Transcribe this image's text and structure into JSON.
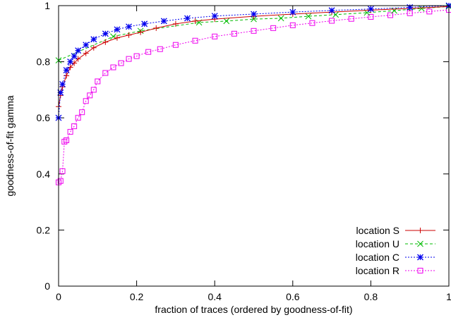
{
  "chart_data": {
    "type": "line",
    "xlabel": "fraction of traces (ordered by goodness-of-fit)",
    "ylabel": "goodness-of-fit gamma",
    "xlim": [
      0,
      1
    ],
    "ylim": [
      0,
      1
    ],
    "x_ticks": [
      0,
      0.2,
      0.4,
      0.6,
      0.8,
      1
    ],
    "x_tick_labels": [
      "0",
      "0.2",
      "0.4",
      "0.6",
      "0.8",
      "1"
    ],
    "y_ticks": [
      0,
      0.2,
      0.4,
      0.6,
      0.8,
      1
    ],
    "y_tick_labels": [
      "0",
      "0.2",
      "0.4",
      "0.6",
      "0.8",
      "1"
    ],
    "grid": false,
    "legend_position": "bottom-right",
    "series": [
      {
        "name": "location S",
        "color": "#cc0000",
        "marker": "plus",
        "dash": "solid",
        "x": [
          0,
          0.005,
          0.01,
          0.02,
          0.03,
          0.04,
          0.05,
          0.07,
          0.09,
          0.12,
          0.15,
          0.18,
          0.21,
          0.25,
          0.3,
          0.35,
          0.4,
          0.5,
          0.6,
          0.7,
          0.8,
          0.9,
          1.0
        ],
        "y": [
          0.64,
          0.68,
          0.71,
          0.75,
          0.78,
          0.795,
          0.81,
          0.83,
          0.85,
          0.87,
          0.885,
          0.895,
          0.905,
          0.92,
          0.935,
          0.945,
          0.952,
          0.962,
          0.97,
          0.977,
          0.984,
          0.99,
          0.997
        ]
      },
      {
        "name": "location U",
        "color": "#00bb00",
        "marker": "cross",
        "dash": "dashed",
        "x": [
          0,
          0.14,
          0.21,
          0.36,
          0.43,
          0.5,
          0.57,
          0.64,
          0.71,
          0.79,
          0.86,
          0.93,
          1.0
        ],
        "y": [
          0.805,
          0.89,
          0.91,
          0.94,
          0.945,
          0.952,
          0.955,
          0.962,
          0.968,
          0.975,
          0.982,
          0.99,
          0.997
        ]
      },
      {
        "name": "location C",
        "color": "#0000ee",
        "marker": "star",
        "dash": "dotted",
        "x": [
          0,
          0.005,
          0.01,
          0.02,
          0.03,
          0.04,
          0.05,
          0.07,
          0.09,
          0.12,
          0.15,
          0.18,
          0.22,
          0.27,
          0.33,
          0.4,
          0.5,
          0.6,
          0.7,
          0.8,
          0.9,
          1.0
        ],
        "y": [
          0.6,
          0.69,
          0.72,
          0.77,
          0.8,
          0.82,
          0.84,
          0.86,
          0.88,
          0.9,
          0.915,
          0.925,
          0.935,
          0.945,
          0.955,
          0.963,
          0.97,
          0.977,
          0.983,
          0.988,
          0.994,
          1.0
        ]
      },
      {
        "name": "location R",
        "color": "#ee00ee",
        "marker": "square",
        "dash": "dotted",
        "x": [
          0,
          0.005,
          0.01,
          0.015,
          0.02,
          0.03,
          0.04,
          0.05,
          0.06,
          0.07,
          0.08,
          0.09,
          0.1,
          0.12,
          0.14,
          0.16,
          0.18,
          0.2,
          0.23,
          0.26,
          0.3,
          0.35,
          0.4,
          0.45,
          0.5,
          0.55,
          0.6,
          0.65,
          0.7,
          0.75,
          0.8,
          0.85,
          0.9,
          0.95,
          1.0
        ],
        "y": [
          0.37,
          0.375,
          0.41,
          0.515,
          0.52,
          0.55,
          0.57,
          0.6,
          0.62,
          0.66,
          0.68,
          0.7,
          0.73,
          0.76,
          0.78,
          0.795,
          0.81,
          0.82,
          0.835,
          0.845,
          0.86,
          0.875,
          0.89,
          0.9,
          0.91,
          0.92,
          0.93,
          0.938,
          0.946,
          0.953,
          0.96,
          0.966,
          0.973,
          0.979,
          0.985
        ]
      }
    ]
  }
}
